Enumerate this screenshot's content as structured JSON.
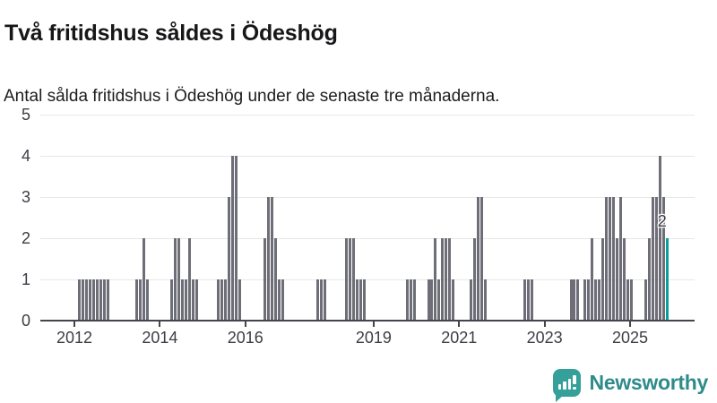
{
  "header": {
    "title": "Två fritidshus såldes i Ödeshög",
    "subtitle": "Antal sålda fritidshus i Ödeshög under de senaste tre månaderna."
  },
  "chart_data": {
    "type": "bar",
    "title": "Två fritidshus såldes i Ödeshög",
    "subtitle": "Antal sålda fritidshus i Ödeshög under de senaste tre månaderna.",
    "frequency": "monthly",
    "start_month": "2011-04",
    "end_month": "2025-11",
    "values": [
      0,
      0,
      0,
      0,
      0,
      0,
      0,
      0,
      0,
      0,
      1,
      1,
      1,
      1,
      1,
      1,
      1,
      1,
      1,
      0,
      0,
      0,
      0,
      0,
      0,
      0,
      1,
      1,
      2,
      1,
      0,
      0,
      0,
      0,
      0,
      0,
      1,
      2,
      2,
      1,
      1,
      2,
      1,
      1,
      0,
      0,
      0,
      0,
      0,
      1,
      1,
      1,
      3,
      4,
      4,
      1,
      0,
      0,
      0,
      0,
      0,
      0,
      2,
      3,
      3,
      2,
      1,
      1,
      0,
      0,
      0,
      0,
      0,
      0,
      0,
      0,
      0,
      1,
      1,
      1,
      0,
      0,
      0,
      0,
      0,
      2,
      2,
      2,
      1,
      1,
      1,
      0,
      0,
      0,
      0,
      0,
      0,
      0,
      0,
      0,
      0,
      0,
      1,
      1,
      1,
      0,
      0,
      0,
      1,
      1,
      2,
      1,
      2,
      2,
      2,
      1,
      0,
      0,
      0,
      0,
      1,
      2,
      3,
      3,
      1,
      0,
      0,
      0,
      0,
      0,
      0,
      0,
      0,
      0,
      0,
      1,
      1,
      1,
      0,
      0,
      0,
      0,
      0,
      0,
      0,
      0,
      0,
      0,
      1,
      1,
      1,
      0,
      1,
      1,
      2,
      1,
      1,
      2,
      3,
      3,
      3,
      2,
      3,
      2,
      1,
      1,
      0,
      0,
      0,
      1,
      2,
      3,
      3,
      4,
      3,
      2
    ],
    "highlight_last_bar": true,
    "annotation": {
      "text": "2",
      "refers_to": "last-bar"
    },
    "y_axis": {
      "ticks": [
        "0",
        "1",
        "2",
        "3",
        "4",
        "5"
      ],
      "range": [
        0,
        5
      ],
      "grid": true
    },
    "x_axis": {
      "tick_years": [
        "2012",
        "2014",
        "2016",
        "2019",
        "2021",
        "2023",
        "2025"
      ]
    },
    "legend": "none",
    "colors": {
      "bar": "#6e6e78",
      "highlight": "#0a9f97",
      "grid": "#e7e7e7",
      "axis": "#45454c",
      "axis_label": "#3d3d44"
    }
  },
  "branding": {
    "logo_text": "Newsworthy",
    "logo_icon": "newsworthy-bars-icon",
    "logo_text_color": "#2e8b8a",
    "logo_mark_color": "#35a09a"
  }
}
